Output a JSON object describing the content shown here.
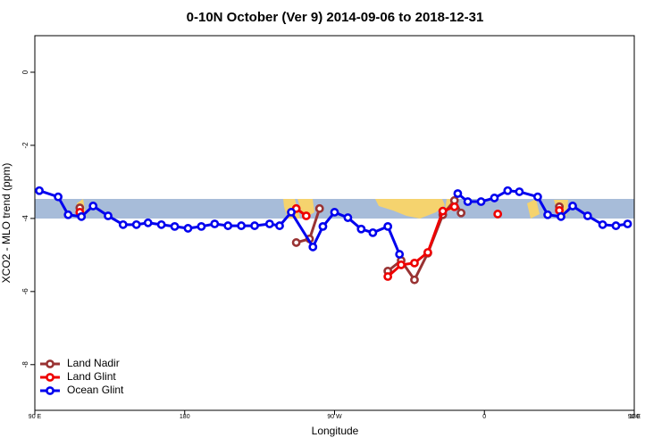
{
  "chart_data": {
    "type": "line",
    "title": "0-10N October (Ver 9)   2014-09-06 to 2018-12-31",
    "x_label": "Longitude",
    "y_label": "XCO2 - MLO trend (ppm)",
    "xlim": [
      90,
      450
    ],
    "xticks": [
      {
        "value": 90,
        "label": "90 E"
      },
      180,
      {
        "value": 270,
        "label": "90 W"
      },
      {
        "value": 360,
        "label": "0"
      },
      {
        "value": 450,
        "label": "90 E"
      },
      {
        "value": 540,
        "label": "180"
      }
    ],
    "ylim": [
      -9.25,
      1
    ],
    "yticks": [
      0,
      -2,
      -4,
      -6,
      -8
    ],
    "legend": "bottom-left",
    "series": [
      {
        "name": "Land Nadir",
        "color": "#993333",
        "x": [
          117,
          null,
          247,
          255,
          261,
          null,
          302,
          310,
          318,
          326,
          335,
          342,
          346,
          null,
          405
        ],
        "values": [
          -3.71,
          null,
          -4.66,
          -4.56,
          -3.73,
          null,
          -5.44,
          -5.15,
          -5.68,
          -4.95,
          -3.9,
          -3.51,
          -3.85,
          null,
          -3.68
        ]
      },
      {
        "name": "Land Glint",
        "color": "#ee0000",
        "x": [
          117,
          null,
          247,
          253,
          null,
          302,
          310,
          318,
          326,
          335,
          342,
          null,
          368,
          null,
          405
        ],
        "values": [
          -3.83,
          null,
          -3.73,
          -3.93,
          null,
          -5.59,
          -5.27,
          -5.22,
          -4.93,
          -3.8,
          -3.68,
          null,
          -3.88,
          null,
          -3.78
        ]
      },
      {
        "name": "Ocean Glint",
        "color": "#0000ee",
        "x": [
          92.7,
          104,
          110,
          118,
          125,
          134,
          143,
          151,
          158,
          166,
          174,
          182,
          190,
          198,
          206,
          214,
          222,
          231,
          237,
          244,
          257,
          263,
          270,
          278,
          286,
          293,
          302,
          309,
          null,
          344,
          350,
          358,
          366,
          374,
          381,
          392,
          398,
          406,
          413,
          422,
          431,
          439,
          446
        ],
        "values": [
          -3.24,
          -3.41,
          -3.9,
          -3.95,
          -3.66,
          -3.93,
          -4.17,
          -4.17,
          -4.12,
          -4.17,
          -4.22,
          -4.27,
          -4.22,
          -4.15,
          -4.2,
          -4.2,
          -4.2,
          -4.15,
          -4.2,
          -3.83,
          -4.78,
          -4.22,
          -3.83,
          -3.98,
          -4.29,
          -4.39,
          -4.22,
          -4.98,
          null,
          -3.32,
          -3.54,
          -3.54,
          -3.44,
          -3.24,
          -3.27,
          -3.41,
          -3.9,
          -3.95,
          -3.66,
          -3.93,
          -4.17,
          -4.2,
          -4.15
        ]
      }
    ]
  }
}
